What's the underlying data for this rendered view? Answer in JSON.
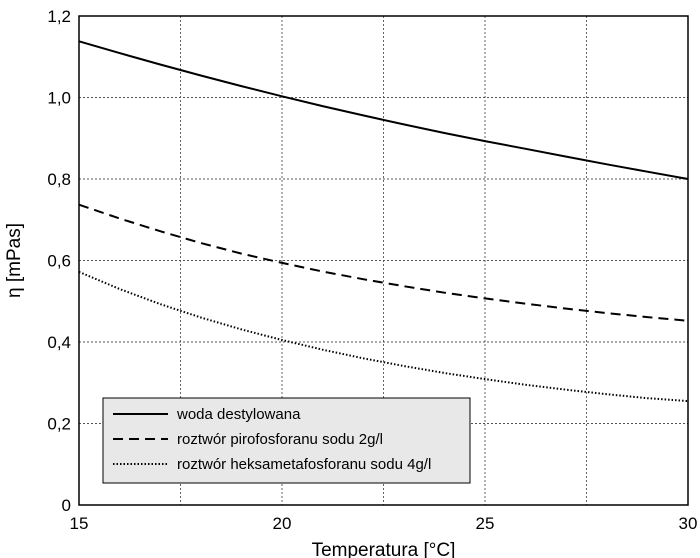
{
  "chart_data": {
    "type": "line",
    "xlabel": "Temperatura [°C]",
    "ylabel": "η  [mPas]",
    "xlim": [
      15,
      30
    ],
    "ylim": [
      0,
      1.2
    ],
    "x_ticks": [
      15,
      20,
      25,
      30
    ],
    "x_tick_labels": [
      "15",
      "20",
      "25",
      "30"
    ],
    "x_minor_grid": [
      17.5,
      22.5,
      27.5
    ],
    "y_ticks": [
      0,
      0.2,
      0.4,
      0.6,
      0.8,
      1.0,
      1.2
    ],
    "y_tick_labels": [
      "0",
      "0,2",
      "0,4",
      "0,6",
      "0,8",
      "1,0",
      "1,2"
    ],
    "grid": true,
    "legend_position": "bottom-left",
    "x": [
      15,
      16,
      17,
      18,
      19,
      20,
      21,
      22,
      23,
      24,
      25,
      26,
      27,
      28,
      29,
      30
    ],
    "series": [
      {
        "name": "woda destylowana",
        "style": "solid",
        "values": [
          1.138,
          1.109,
          1.081,
          1.054,
          1.028,
          1.003,
          0.979,
          0.956,
          0.934,
          0.913,
          0.893,
          0.874,
          0.855,
          0.836,
          0.818,
          0.8
        ]
      },
      {
        "name": "roztwór pirofosforanu sodu 2g/l",
        "style": "dashed",
        "values": [
          0.737,
          0.703,
          0.672,
          0.643,
          0.617,
          0.594,
          0.573,
          0.554,
          0.537,
          0.521,
          0.507,
          0.494,
          0.482,
          0.471,
          0.461,
          0.452
        ]
      },
      {
        "name": "roztwór heksametafosforanu sodu 4g/l",
        "style": "dotted",
        "values": [
          0.572,
          0.53,
          0.493,
          0.46,
          0.431,
          0.405,
          0.381,
          0.36,
          0.341,
          0.324,
          0.309,
          0.295,
          0.283,
          0.272,
          0.262,
          0.255
        ]
      }
    ]
  }
}
